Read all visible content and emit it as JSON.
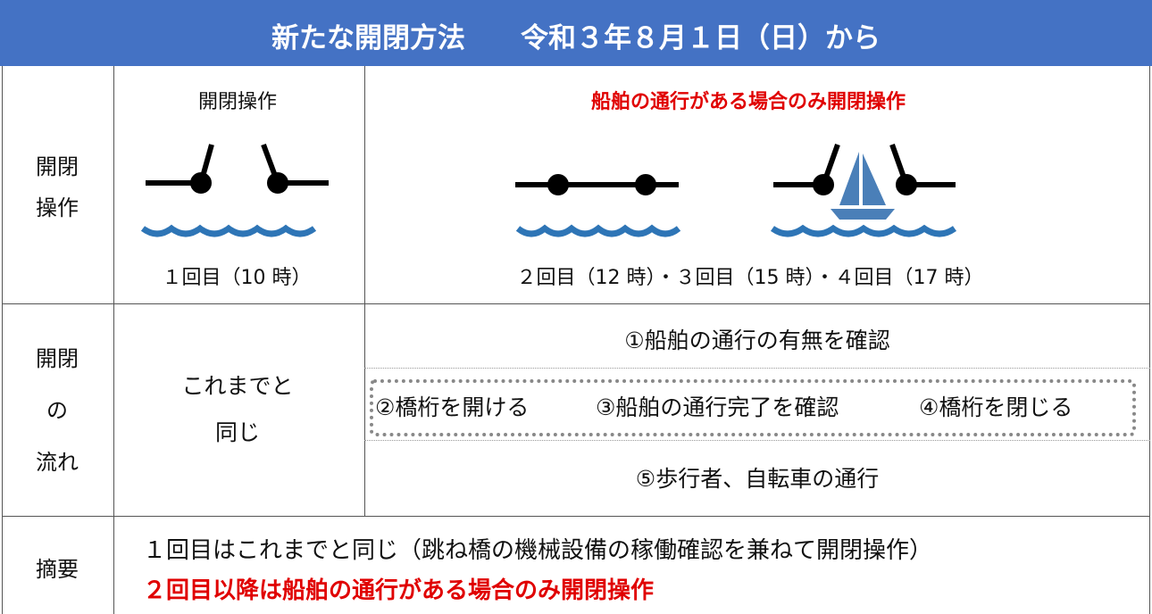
{
  "header": {
    "title": "新たな開閉方法　　令和３年８月１日（日）から"
  },
  "rows": [
    {
      "label": [
        "開閉",
        "操作"
      ],
      "col2": {
        "heading": "開閉操作",
        "caption": "１回目（10 時）"
      },
      "col3": {
        "heading": "船舶の通行がある場合のみ開閉操作",
        "caption": "２回目（12 時）・３回目（15 時）・４回目（17 時）"
      }
    },
    {
      "label": [
        "開閉",
        "の",
        "流れ"
      ],
      "col2": [
        "これまでと",
        "同じ"
      ],
      "col3": [
        "①船舶の通行の有無を確認",
        "②橋桁を開ける",
        "③船舶の通行完了を確認",
        "④橋桁を閉じる",
        "⑤歩行者、自転車の通行"
      ]
    },
    {
      "label": "摘要",
      "lines": [
        "１回目はこれまでと同じ（跳ね橋の機械設備の稼働確認を兼ねて開閉操作）",
        "２回目以降は船舶の通行がある場合のみ開閉操作"
      ]
    }
  ]
}
